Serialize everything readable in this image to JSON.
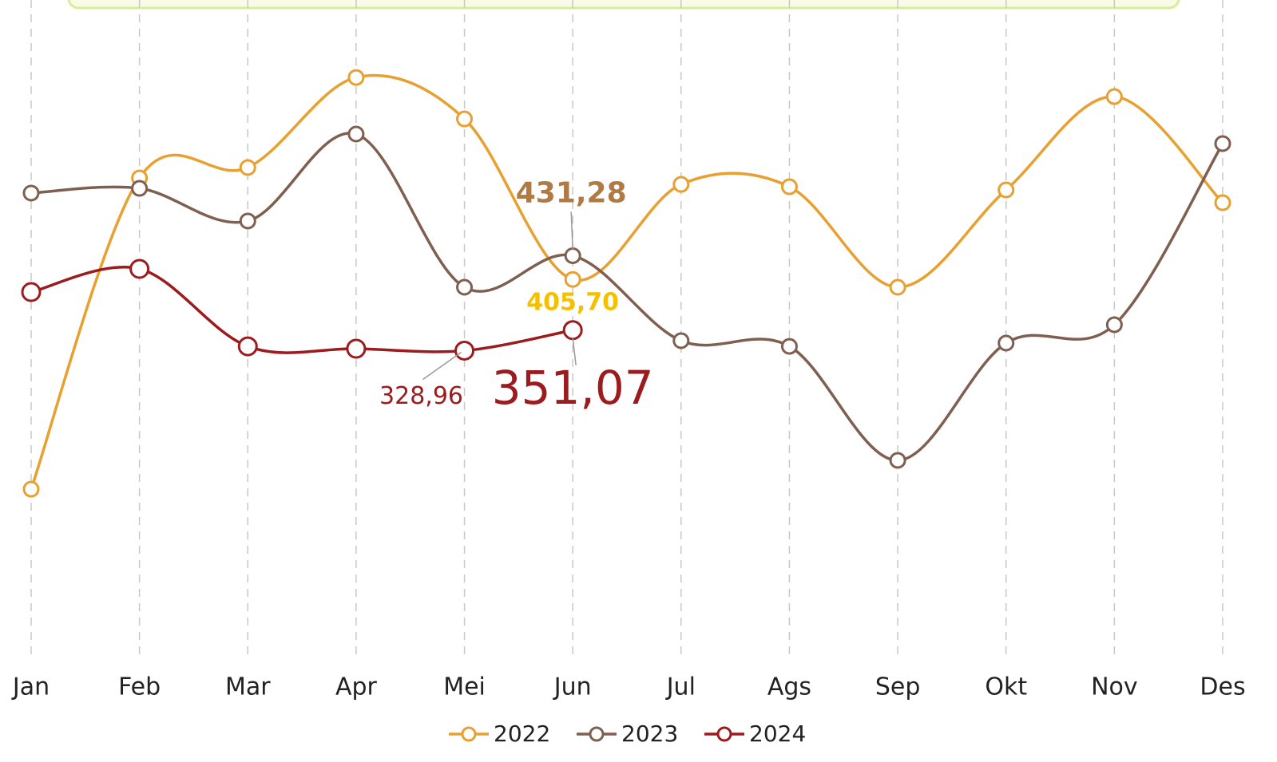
{
  "chart_data": {
    "type": "line",
    "categories": [
      "Jan",
      "Feb",
      "Mar",
      "Apr",
      "Mei",
      "Jun",
      "Jul",
      "Ags",
      "Sep",
      "Okt",
      "Nov",
      "Des"
    ],
    "ylim": [
      0,
      700
    ],
    "legend": "bottom",
    "series": [
      {
        "name": "2022",
        "color": "#e8a030",
        "values": [
          179.7,
          515.1,
          526.3,
          623.4,
          578.7,
          405.7,
          508.2,
          505.6,
          397.3,
          502.2,
          602.8,
          488.4
        ],
        "value_labels": [
          null,
          null,
          null,
          null,
          null,
          "405,70",
          null,
          null,
          null,
          null,
          null,
          null
        ]
      },
      {
        "name": "2023",
        "color": "#7f5f50",
        "values": [
          498.8,
          503.9,
          468.7,
          562.4,
          397.3,
          431.28,
          339.7,
          333.6,
          210.7,
          337.1,
          356.9,
          552.1
        ],
        "value_labels": [
          null,
          null,
          null,
          null,
          null,
          "431,28",
          null,
          null,
          null,
          null,
          null,
          null
        ]
      },
      {
        "name": "2024",
        "color": "#9b1b1e",
        "values": [
          392.1,
          417.1,
          333.6,
          331.1,
          328.96,
          351.07,
          null,
          null,
          null,
          null,
          null,
          null
        ],
        "value_labels": [
          null,
          null,
          null,
          null,
          "328,96",
          "351,07",
          null,
          null,
          null,
          null,
          null,
          null
        ]
      }
    ]
  }
}
